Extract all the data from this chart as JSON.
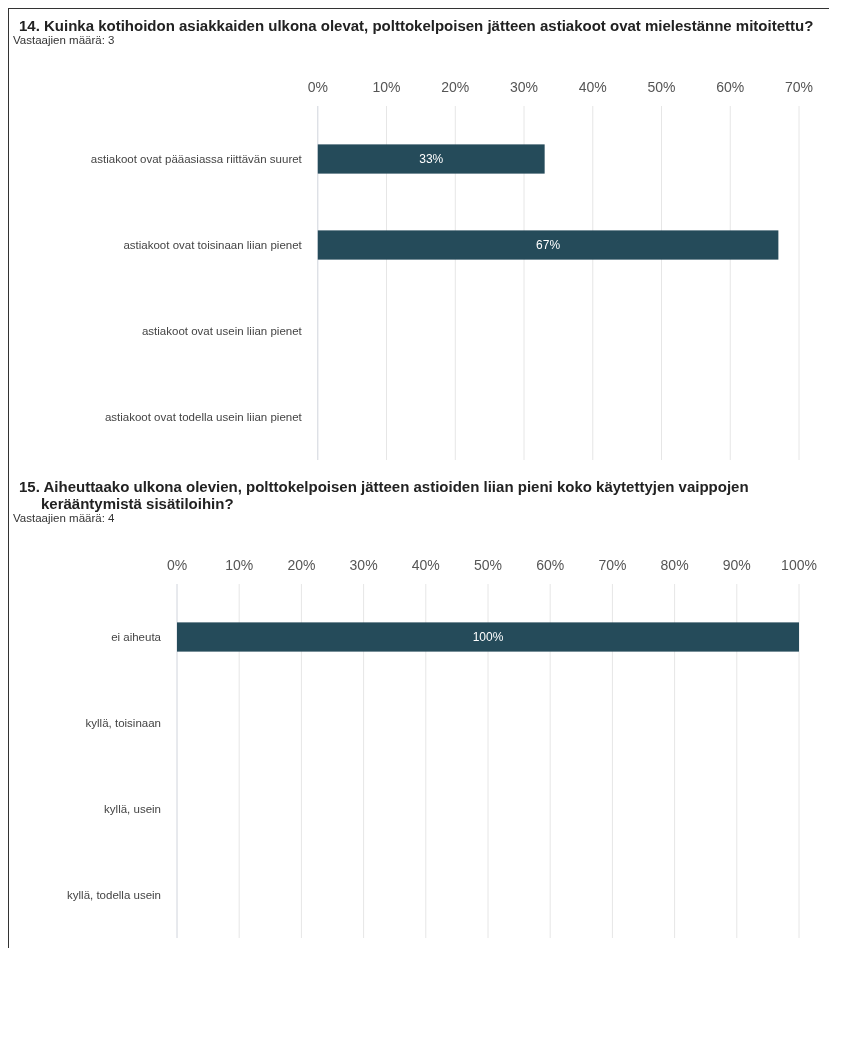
{
  "chart_data": [
    {
      "type": "bar",
      "orientation": "horizontal",
      "title": "14. Kuinka kotihoidon asiakkaiden ulkona olevat, polttokelpoisen jätteen astiakoot ovat mielestänne mitoitettu?",
      "subtitle": "Vastaajien määrä: 3",
      "categories": [
        "astiakoot ovat pääasiassa riittävän suuret",
        "astiakoot ovat toisinaan liian pienet",
        "astiakoot ovat usein liian pienet",
        "astiakoot ovat todella usein liian pienet"
      ],
      "values": [
        33,
        67,
        0,
        0
      ],
      "value_labels": [
        "33%",
        "67%",
        null,
        null
      ],
      "color": "#254b5a",
      "xlim": [
        0,
        70
      ],
      "xticks": [
        {
          "value": 0,
          "label": "0%"
        },
        {
          "value": 10,
          "label": "10%"
        },
        {
          "value": 20,
          "label": "20%"
        },
        {
          "value": 30,
          "label": "30%"
        },
        {
          "value": 40,
          "label": "40%"
        },
        {
          "value": 50,
          "label": "50%"
        },
        {
          "value": 60,
          "label": "60%"
        },
        {
          "value": 70,
          "label": "70%"
        }
      ],
      "grid": "x"
    },
    {
      "type": "bar",
      "orientation": "horizontal",
      "title": "15. Aiheuttaako ulkona olevien, polttokelpoisen jätteen astioiden liian pieni koko käytettyjen vaippojen kerääntymistä sisätiloihin?",
      "subtitle": "Vastaajien määrä: 4",
      "categories": [
        "ei aiheuta",
        "kyllä, toisinaan",
        "kyllä, usein",
        "kyllä, todella usein"
      ],
      "values": [
        100,
        0,
        0,
        0
      ],
      "value_labels": [
        "100%",
        null,
        null,
        null
      ],
      "color": "#254b5a",
      "xlim": [
        0,
        100
      ],
      "xticks": [
        {
          "value": 0,
          "label": "0%"
        },
        {
          "value": 10,
          "label": "10%"
        },
        {
          "value": 20,
          "label": "20%"
        },
        {
          "value": 30,
          "label": "30%"
        },
        {
          "value": 40,
          "label": "40%"
        },
        {
          "value": 50,
          "label": "50%"
        },
        {
          "value": 60,
          "label": "60%"
        },
        {
          "value": 70,
          "label": "70%"
        },
        {
          "value": 80,
          "label": "80%"
        },
        {
          "value": 90,
          "label": "90%"
        },
        {
          "value": 100,
          "label": "100%"
        }
      ],
      "grid": "x"
    }
  ]
}
